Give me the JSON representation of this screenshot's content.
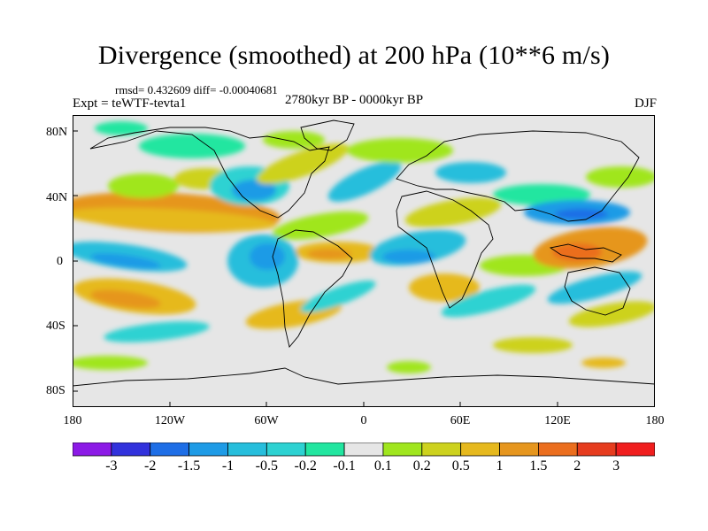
{
  "figure": {
    "title": "Divergence (smoothed) at 200 hPa (10**6 m/s)",
    "stats": "rmsd= 0.432609 diff= -0.00040681",
    "experiment": "Expt = teWTF-tevta1",
    "period": "2780kyr BP - 0000kyr BP",
    "season": "DJF"
  },
  "axes": {
    "lat_labels": [
      "80N",
      "40N",
      "0",
      "40S",
      "80S"
    ],
    "lon_labels": [
      "180",
      "120W",
      "60W",
      "0",
      "60E",
      "120E",
      "180"
    ]
  },
  "colorbar": {
    "labels": [
      "-3",
      "-2",
      "-1.5",
      "-1",
      "-0.5",
      "-0.2",
      "-0.1",
      "0.1",
      "0.2",
      "0.5",
      "1",
      "1.5",
      "2",
      "3"
    ],
    "colors": [
      "#8c1ae6",
      "#3232dc",
      "#1e6ee6",
      "#1e9be6",
      "#26bedc",
      "#2dd2d2",
      "#22e6a0",
      "#e6e6e6",
      "#a0e61e",
      "#cdd21e",
      "#e6b91e",
      "#e6961e",
      "#eb6e1e",
      "#e63c1e",
      "#f01e1e"
    ]
  },
  "map": {
    "background_color": "#e6e6e6",
    "coast_color": "#000000"
  }
}
